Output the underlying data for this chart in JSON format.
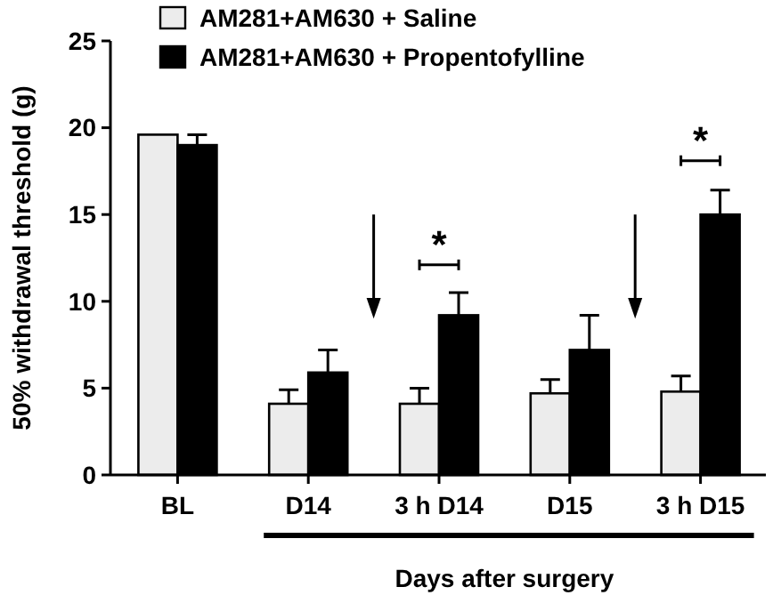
{
  "chart_data": {
    "type": "bar",
    "ylabel": "50% withdrawal threshold (g)",
    "xlabel": "Days after surgery",
    "categories": [
      "BL",
      "D14",
      "3 h D14",
      "D15",
      "3 h D15"
    ],
    "series": [
      {
        "name": "AM281+AM630 + Saline",
        "color": "#ececec",
        "values": [
          19.6,
          4.1,
          4.1,
          4.7,
          4.8
        ],
        "errors": [
          null,
          [
            4.1,
            4.9
          ],
          [
            4.1,
            5.0
          ],
          [
            4.7,
            5.5
          ],
          [
            4.8,
            5.7
          ]
        ]
      },
      {
        "name": "AM281+AM630 + Propentofylline",
        "color": "#000000",
        "values": [
          19.0,
          5.9,
          9.2,
          7.2,
          15.0
        ],
        "errors": [
          [
            19.0,
            19.6
          ],
          [
            5.9,
            7.2
          ],
          [
            9.2,
            10.5
          ],
          [
            7.2,
            9.2
          ],
          [
            15.0,
            16.4
          ]
        ]
      }
    ],
    "ylim": [
      0,
      25
    ],
    "yticks": [
      0,
      5,
      10,
      15,
      20,
      25
    ],
    "grid": false,
    "legend": "top",
    "annotations": [
      "*",
      "*"
    ]
  }
}
